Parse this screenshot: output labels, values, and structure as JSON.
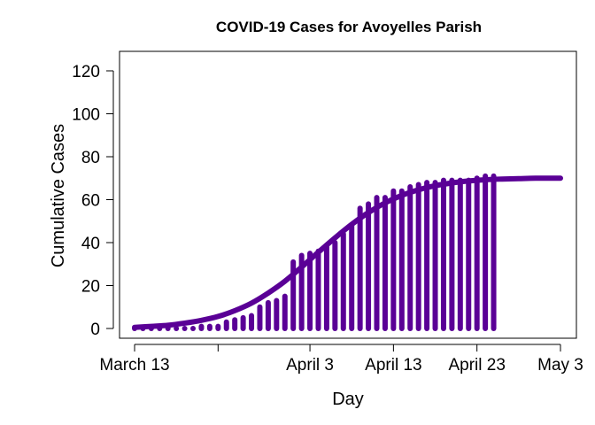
{
  "chart_data": {
    "type": "bar",
    "title": "COVID-19 Cases for Avoyelles Parish",
    "xlabel": "Day",
    "ylabel": "Cumulative Cases",
    "ylim": [
      0,
      120
    ],
    "yticks": [
      0,
      20,
      40,
      60,
      80,
      100,
      120
    ],
    "xlim": [
      "2020-03-13",
      "2020-05-03"
    ],
    "xticks": [
      {
        "date": "2020-03-13",
        "label": "March 13"
      },
      {
        "date": "2020-03-23",
        "label": ""
      },
      {
        "date": "2020-04-03",
        "label": "April 3"
      },
      {
        "date": "2020-04-13",
        "label": "April 13"
      },
      {
        "date": "2020-04-23",
        "label": "April 23"
      },
      {
        "date": "2020-05-03",
        "label": "May 3"
      }
    ],
    "color": "#5a0096",
    "series": [
      {
        "type": "bar",
        "x": [
          "2020-03-13",
          "2020-03-14",
          "2020-03-15",
          "2020-03-16",
          "2020-03-17",
          "2020-03-18",
          "2020-03-19",
          "2020-03-20",
          "2020-03-21",
          "2020-03-22",
          "2020-03-23",
          "2020-03-24",
          "2020-03-25",
          "2020-03-26",
          "2020-03-27",
          "2020-03-28",
          "2020-03-29",
          "2020-03-30",
          "2020-03-31",
          "2020-04-01",
          "2020-04-02",
          "2020-04-03",
          "2020-04-04",
          "2020-04-05",
          "2020-04-06",
          "2020-04-07",
          "2020-04-08",
          "2020-04-09",
          "2020-04-10",
          "2020-04-11",
          "2020-04-12",
          "2020-04-13",
          "2020-04-14",
          "2020-04-15",
          "2020-04-16",
          "2020-04-17",
          "2020-04-18",
          "2020-04-19",
          "2020-04-20",
          "2020-04-21",
          "2020-04-22",
          "2020-04-23",
          "2020-04-24",
          "2020-04-25"
        ],
        "values": [
          0,
          0,
          0,
          0,
          0,
          0,
          0,
          0,
          1,
          1,
          1,
          3,
          4,
          5,
          6,
          10,
          12,
          13,
          15,
          31,
          34,
          35,
          36,
          38,
          40,
          44,
          48,
          56,
          58,
          61,
          61,
          64,
          64,
          66,
          67,
          68,
          68,
          69,
          69,
          69,
          69,
          70,
          71,
          71
        ]
      },
      {
        "type": "line",
        "x": [
          "2020-03-13",
          "2020-03-15",
          "2020-03-17",
          "2020-03-19",
          "2020-03-21",
          "2020-03-23",
          "2020-03-25",
          "2020-03-27",
          "2020-03-29",
          "2020-03-31",
          "2020-04-02",
          "2020-04-04",
          "2020-04-06",
          "2020-04-08",
          "2020-04-10",
          "2020-04-12",
          "2020-04-14",
          "2020-04-16",
          "2020-04-18",
          "2020-04-20",
          "2020-04-22",
          "2020-04-24",
          "2020-04-26",
          "2020-04-28",
          "2020-04-30",
          "2020-05-03"
        ],
        "values": [
          0.5,
          1.0,
          1.5,
          2.5,
          3.8,
          5.6,
          8.3,
          11.8,
          16.5,
          22.0,
          28.6,
          35.5,
          42.2,
          48.5,
          54.0,
          58.5,
          62.0,
          64.6,
          66.5,
          67.8,
          68.7,
          69.3,
          69.6,
          69.8,
          70.0,
          70.0
        ]
      }
    ]
  }
}
